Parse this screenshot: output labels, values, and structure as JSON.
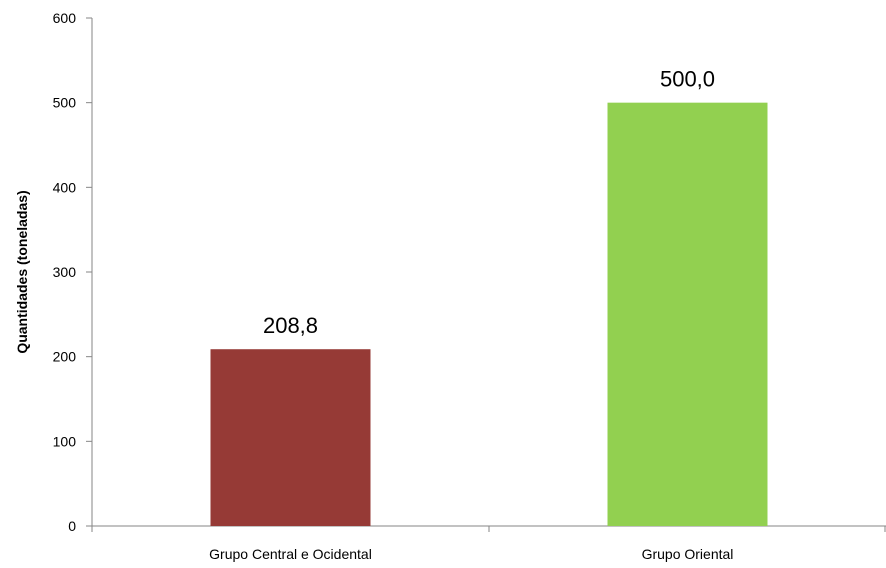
{
  "chart_data": {
    "type": "bar",
    "categories": [
      "Grupo Central e Ocidental",
      "Grupo Oriental"
    ],
    "values": [
      208.8,
      500.0
    ],
    "data_labels": [
      "208,8",
      "500,0"
    ],
    "colors": [
      "#963a36",
      "#92d050"
    ],
    "title": "",
    "xlabel": "",
    "ylabel": "Quantidades (toneladas)",
    "ylim": [
      0,
      600
    ],
    "yticks": [
      0,
      100,
      200,
      300,
      400,
      500,
      600
    ],
    "grid": false,
    "legend": "none"
  }
}
